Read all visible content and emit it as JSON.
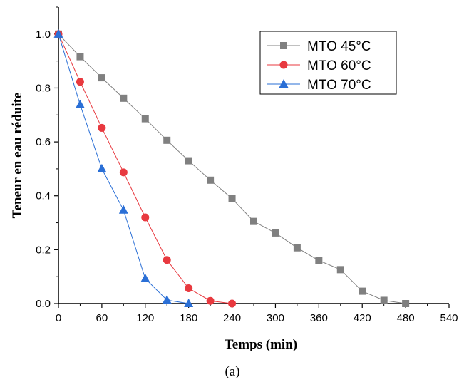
{
  "chart_data": {
    "type": "line",
    "title": "",
    "xlabel": "Temps (min)",
    "ylabel": "Teneur en eau réduite",
    "xlim": [
      0,
      540
    ],
    "ylim": [
      0,
      1.1
    ],
    "xticks": [
      "0",
      "60",
      "120",
      "180",
      "240",
      "300",
      "360",
      "420",
      "480",
      "540"
    ],
    "yticks": [
      "0.0",
      "0.2",
      "0.4",
      "0.6",
      "0.8",
      "1.0"
    ],
    "grid": false,
    "legend_position": "top-right",
    "series": [
      {
        "name": "MTO 45°C",
        "marker": "square",
        "color": "#808080",
        "x": [
          0,
          30,
          60,
          90,
          120,
          150,
          180,
          210,
          240,
          270,
          300,
          330,
          360,
          390,
          420,
          450,
          480
        ],
        "y": [
          1.0,
          0.916,
          0.838,
          0.762,
          0.686,
          0.606,
          0.53,
          0.458,
          0.39,
          0.305,
          0.262,
          0.207,
          0.16,
          0.126,
          0.046,
          0.012,
          0.0
        ]
      },
      {
        "name": "MTO 60°C",
        "marker": "circle",
        "color": "#e8393f",
        "x": [
          0,
          30,
          60,
          90,
          120,
          150,
          180,
          210,
          240
        ],
        "y": [
          1.0,
          0.823,
          0.652,
          0.487,
          0.32,
          0.162,
          0.057,
          0.01,
          0.0
        ]
      },
      {
        "name": "MTO 70°C",
        "marker": "triangle",
        "color": "#2a6fd6",
        "x": [
          0,
          30,
          60,
          90,
          120,
          150,
          180
        ],
        "y": [
          1.0,
          0.738,
          0.5,
          0.347,
          0.093,
          0.013,
          0.0
        ]
      }
    ]
  },
  "caption": "(a)"
}
